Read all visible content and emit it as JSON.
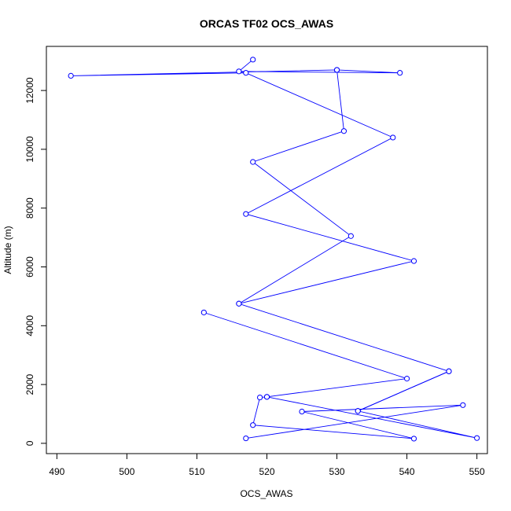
{
  "chart_data": {
    "type": "line",
    "title": "ORCAS TF02 OCS_AWAS",
    "xlabel": "OCS_AWAS",
    "ylabel": "Altitude (m)",
    "xlim": [
      488.5,
      551.5
    ],
    "ylim": [
      -350,
      13500
    ],
    "xticks": [
      490,
      500,
      510,
      520,
      530,
      540,
      550
    ],
    "yticks": [
      0,
      2000,
      4000,
      6000,
      8000,
      10000,
      12000
    ],
    "series": [
      {
        "color": "#0000ff",
        "marker": "open-circle",
        "points": [
          {
            "x": 518.0,
            "y": 13050
          },
          {
            "x": 516.0,
            "y": 12650
          },
          {
            "x": 539.0,
            "y": 12600
          },
          {
            "x": 530.0,
            "y": 12700
          },
          {
            "x": 492.0,
            "y": 12500
          },
          {
            "x": 517.0,
            "y": 12600
          },
          {
            "x": 538.0,
            "y": 10400
          },
          {
            "x": 517.0,
            "y": 7800
          },
          {
            "x": 541.0,
            "y": 6200
          },
          {
            "x": 516.0,
            "y": 4750
          },
          {
            "x": 546.0,
            "y": 2450
          },
          {
            "x": 533.0,
            "y": 1100
          },
          {
            "x": 550.0,
            "y": 180
          },
          {
            "x": 520.0,
            "y": 1580
          },
          {
            "x": 519.0,
            "y": 1560
          },
          {
            "x": 518.0,
            "y": 620
          },
          {
            "x": 541.0,
            "y": 160
          },
          {
            "x": 525.0,
            "y": 1080
          },
          {
            "x": 548.0,
            "y": 1300
          },
          {
            "x": 517.0,
            "y": 170
          }
        ]
      },
      {
        "color": "#0000ff",
        "marker": "open-circle",
        "points": [
          {
            "x": 530.0,
            "y": 12700
          },
          {
            "x": 531.0,
            "y": 10620
          },
          {
            "x": 518.0,
            "y": 9570
          },
          {
            "x": 532.0,
            "y": 7050
          },
          {
            "x": 516.0,
            "y": 4750
          }
        ]
      },
      {
        "color": "#0000ff",
        "marker": "open-circle",
        "points": [
          {
            "x": 511.0,
            "y": 4450
          },
          {
            "x": 540.0,
            "y": 2200
          },
          {
            "x": 520.0,
            "y": 1580
          }
        ]
      },
      {
        "color": "#0000ff",
        "marker": "open-circle",
        "points": [
          {
            "x": 546.0,
            "y": 2450
          },
          {
            "x": 533.0,
            "y": 1100
          }
        ]
      }
    ]
  }
}
